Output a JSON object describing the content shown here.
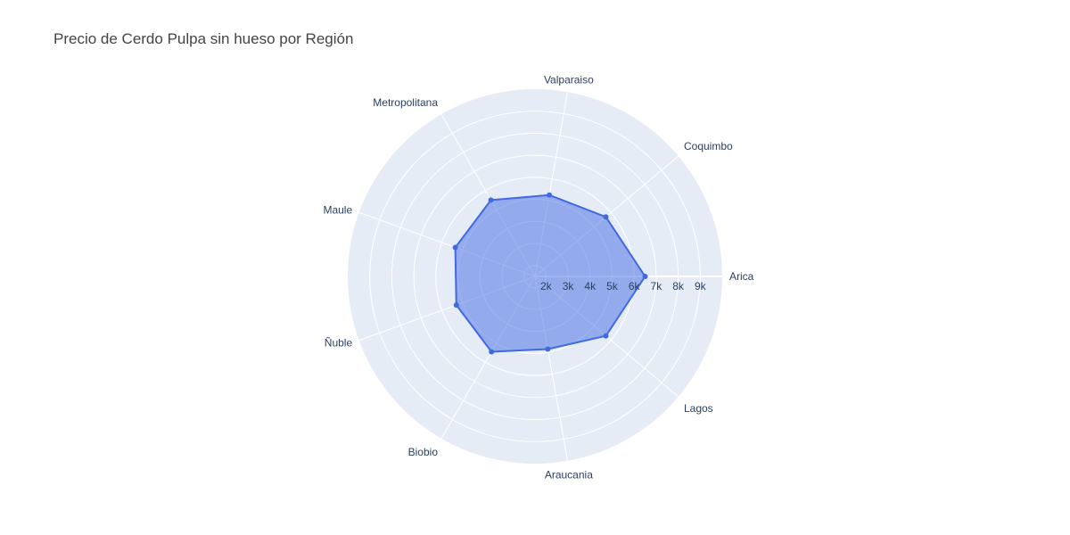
{
  "chart_data": {
    "type": "radar",
    "title": "Precio de Cerdo Pulpa sin hueso por Región",
    "categories": [
      "Arica",
      "Coquimbo",
      "Valparaiso",
      "Metropolitana",
      "Maule",
      "Ñuble",
      "Biobio",
      "Araucania",
      "Lagos"
    ],
    "values": [
      6500,
      5700,
      5250,
      5500,
      5350,
      5300,
      5450,
      4850,
      5700
    ],
    "radial_range": [
      1500,
      10000
    ],
    "radial_ticks": [
      2000,
      3000,
      4000,
      5000,
      6000,
      7000,
      8000,
      9000
    ],
    "radial_tick_labels": [
      "2k",
      "3k",
      "4k",
      "5k",
      "6k",
      "7k",
      "8k",
      "9k"
    ],
    "colors": {
      "line": "#4169e1",
      "fill": "#4169e1",
      "background": "#e5ecf6",
      "grid": "#ffffff",
      "text": "#2a3f5f"
    }
  }
}
